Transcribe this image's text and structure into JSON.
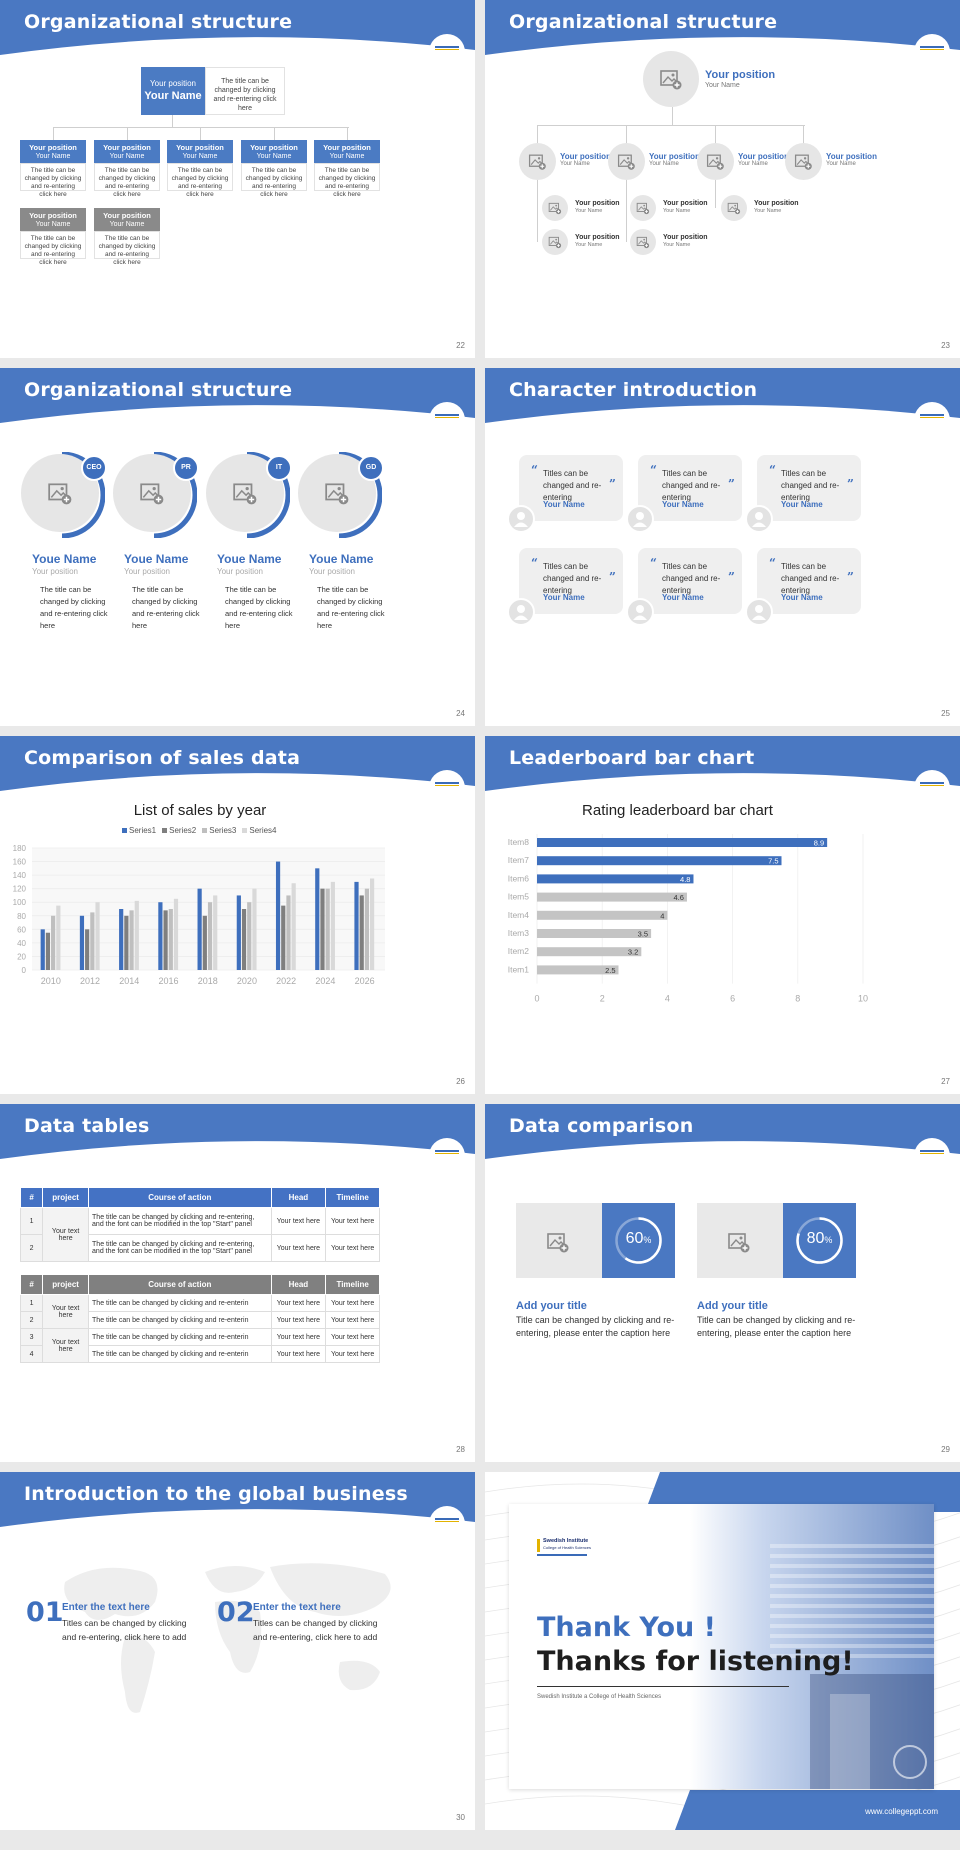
{
  "s22": {
    "title": "Organizational structure",
    "page": "22",
    "top": {
      "position": "Your position",
      "name": "Your Name",
      "desc": "The title can be changed by clicking and re-entering click here"
    },
    "boxes": [
      {
        "position": "Your position",
        "name": "Your Name",
        "desc": "The title can be changed by clicking and re-entering click here"
      },
      {
        "position": "Your position",
        "name": "Your Name",
        "desc": "The title can be changed by clicking and re-entering click here"
      },
      {
        "position": "Your position",
        "name": "Your Name",
        "desc": "The title can be changed by clicking and re-entering click here"
      },
      {
        "position": "Your position",
        "name": "Your Name",
        "desc": "The title can be changed by clicking and re-entering click here"
      },
      {
        "position": "Your position",
        "name": "Your Name",
        "desc": "The title can be changed by clicking and re-entering click here"
      },
      {
        "position": "Your position",
        "name": "Your Name",
        "desc": "The title can be changed by clicking and re-entering click here"
      },
      {
        "position": "Your position",
        "name": "Your Name",
        "desc": "The title can be changed by clicking and re-entering click here"
      }
    ]
  },
  "s23": {
    "title": "Organizational structure",
    "page": "23",
    "top": {
      "position": "Your position",
      "name": "Your Name"
    },
    "mid": [
      {
        "position": "Your position",
        "name": "Your Name"
      },
      {
        "position": "Your position",
        "name": "Your Name"
      },
      {
        "position": "Your position",
        "name": "Your Name"
      },
      {
        "position": "Your position",
        "name": "Your Name"
      }
    ],
    "sub": [
      {
        "position": "Your position",
        "name": "Your Name"
      },
      {
        "position": "Your position",
        "name": "Your Name"
      },
      {
        "position": "Your position",
        "name": "Your Name"
      },
      {
        "position": "Your position",
        "name": "Your Name"
      },
      {
        "position": "Your position",
        "name": "Your Name"
      }
    ]
  },
  "s24": {
    "title": "Organizational structure",
    "page": "24",
    "people": [
      {
        "badge": "CEO",
        "name": "Youe Name",
        "position": "Your position",
        "desc": "The title can be changed by clicking and re-entering click here"
      },
      {
        "badge": "PR",
        "name": "Youe Name",
        "position": "Your position",
        "desc": "The title can be changed by clicking and re-entering click here"
      },
      {
        "badge": "IT",
        "name": "Youe Name",
        "position": "Your position",
        "desc": "The title can be changed by clicking and re-entering click here"
      },
      {
        "badge": "GD",
        "name": "Youe Name",
        "position": "Your position",
        "desc": "The title can be changed by clicking and re-entering click here"
      }
    ]
  },
  "s25": {
    "title": "Character introduction",
    "page": "25",
    "cards": [
      {
        "text": "Titles can be changed and re-entering",
        "name": "Your Name"
      },
      {
        "text": "Titles can be changed and re-entering",
        "name": "Your Name"
      },
      {
        "text": "Titles can be changed and re-entering",
        "name": "Your Name"
      },
      {
        "text": "Titles can be changed and re-entering",
        "name": "Your Name"
      },
      {
        "text": "Titles can be changed and re-entering",
        "name": "Your Name"
      },
      {
        "text": "Titles can be changed and re-entering",
        "name": "Your Name"
      }
    ]
  },
  "s26": {
    "title": "Comparison of sales data",
    "page": "26"
  },
  "s27": {
    "title": "Leaderboard bar chart",
    "page": "27"
  },
  "s28": {
    "title": "Data tables",
    "page": "28",
    "t1": {
      "headers": [
        "#",
        "project",
        "Course of action",
        "Head",
        "Timeline"
      ],
      "project": "Your text here",
      "rows": [
        {
          "n": "1",
          "action": "The title can be changed by clicking and re-entering, and the font can be modified in the top \"Start\" panel",
          "head": "Your text here",
          "time": "Your text here"
        },
        {
          "n": "2",
          "action": "The title can be changed by clicking and re-entering, and the font can be modified in the top \"Start\" panel",
          "head": "Your text here",
          "time": "Your text here"
        }
      ]
    },
    "t2": {
      "headers": [
        "#",
        "project",
        "Course of action",
        "Head",
        "Timeline"
      ],
      "project_a": "Your text here",
      "project_b": "Your text here",
      "rows": [
        {
          "n": "1",
          "action": "The title can be changed by clicking and re-enterin",
          "head": "Your text here",
          "time": "Your text here"
        },
        {
          "n": "2",
          "action": "The title can be changed by clicking and re-enterin",
          "head": "Your text here",
          "time": "Your text here"
        },
        {
          "n": "3",
          "action": "The title can be changed by clicking and re-enterin",
          "head": "Your text here",
          "time": "Your text here"
        },
        {
          "n": "4",
          "action": "The title can be changed by clicking and re-enterin",
          "head": "Your text here",
          "time": "Your text here"
        }
      ]
    }
  },
  "s29": {
    "title": "Data comparison",
    "page": "29",
    "items": [
      {
        "percent": "60",
        "unit": "%",
        "value": 0.6,
        "title": "Add your title",
        "desc": "Title can be changed by clicking and re-entering, please enter the caption here"
      },
      {
        "percent": "80",
        "unit": "%",
        "value": 0.8,
        "title": "Add your title",
        "desc": "Title can be changed by clicking and re-entering, please enter the caption here"
      }
    ]
  },
  "s30": {
    "title": "Introduction to the global business",
    "page": "30",
    "items": [
      {
        "num": "01",
        "heading": "Enter the text here",
        "text": "Titles can be changed by clicking and re-entering, click here to add"
      },
      {
        "num": "02",
        "heading": "Enter the text here",
        "text": "Titles can be changed by clicking and re-entering, click here to add"
      }
    ]
  },
  "s31": {
    "logo_line1": "Swedish Institute",
    "logo_line2": "College of Health Sciences",
    "thanks1": "Thank You !",
    "thanks2": "Thanks for listening!",
    "subtitle": "Swedish Institute a College of Health Sciences",
    "url": "www.collegeppt.com"
  },
  "chart_data": [
    {
      "type": "bar",
      "title": "List of sales by year",
      "categories": [
        "2010",
        "2012",
        "2014",
        "2016",
        "2018",
        "2020",
        "2022",
        "2024",
        "2026"
      ],
      "series": [
        {
          "name": "Series1",
          "values": [
            60,
            80,
            90,
            100,
            120,
            110,
            160,
            150,
            130
          ],
          "color": "#3e6fbd"
        },
        {
          "name": "Series2",
          "values": [
            55,
            60,
            80,
            88,
            80,
            90,
            95,
            120,
            110
          ],
          "color": "#7f7f7f"
        },
        {
          "name": "Series3",
          "values": [
            80,
            85,
            88,
            90,
            100,
            100,
            110,
            120,
            120
          ],
          "color": "#bfbfbf"
        },
        {
          "name": "Series4",
          "values": [
            95,
            100,
            102,
            105,
            110,
            120,
            128,
            130,
            135
          ],
          "color": "#d9d9d9"
        }
      ],
      "ylim": [
        0,
        180
      ],
      "yticks": [
        0,
        20,
        40,
        60,
        80,
        100,
        120,
        140,
        160,
        180
      ],
      "legend": "top"
    },
    {
      "type": "bar",
      "orientation": "horizontal",
      "title": "Rating leaderboard bar chart",
      "categories": [
        "Item8",
        "Item7",
        "Item6",
        "Item5",
        "Item4",
        "Item3",
        "Item2",
        "Item1"
      ],
      "values": [
        8.9,
        7.5,
        4.8,
        4.6,
        4,
        3.5,
        3.2,
        2.5
      ],
      "labels": [
        "8.9",
        "7.5",
        "4.8",
        "4.6",
        "4",
        "3.5",
        "3.2",
        "2.5"
      ],
      "highlight_count": 3,
      "colors": {
        "highlight": "#3e6fbd",
        "normal": "#c4c4c4"
      },
      "xlim": [
        0,
        10
      ],
      "xticks": [
        0,
        2,
        4,
        6,
        8,
        10
      ]
    }
  ]
}
